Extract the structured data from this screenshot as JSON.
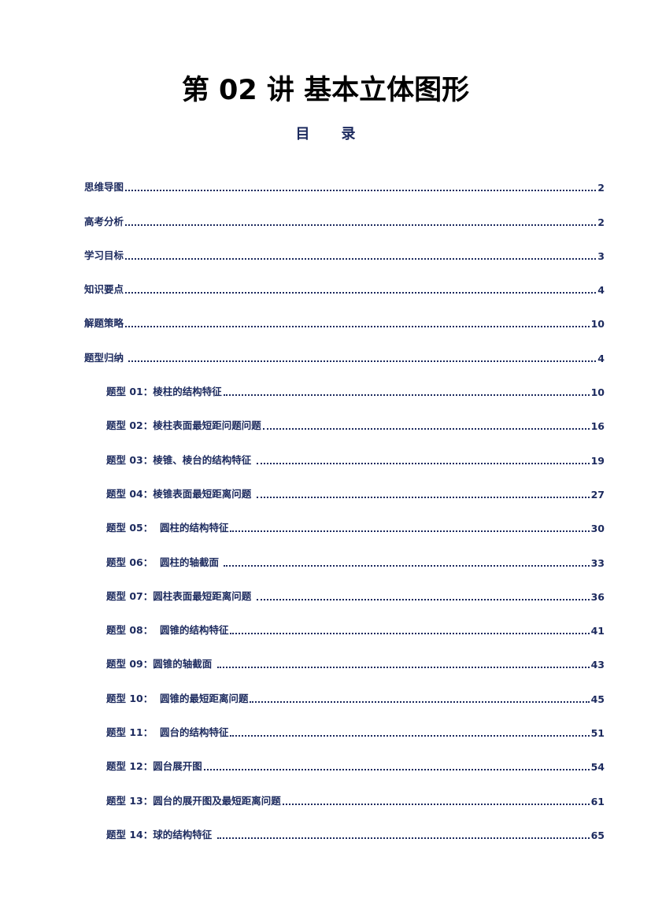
{
  "title": "第 02 讲  基本立体图形",
  "toc_heading": [
    "目",
    "录"
  ],
  "colors": {
    "text": "#1c2a5e",
    "title": "#000000"
  },
  "entries": [
    {
      "label": "思维导图",
      "page": "2",
      "level": 1
    },
    {
      "label": "高考分析",
      "page": "2",
      "level": 1
    },
    {
      "label": "学习目标",
      "page": "3",
      "level": 1
    },
    {
      "label": "知识要点",
      "page": "4",
      "level": 1
    },
    {
      "label": "解题策略",
      "page": "10",
      "level": 1
    },
    {
      "label": "题型归纳 ",
      "page": "4",
      "level": 1
    },
    {
      "label": "题型 01：棱柱的结构特征",
      "page": "10",
      "level": 2
    },
    {
      "label": "题型 02：棱柱表面最短距问题问题",
      "page": "16",
      "level": 2
    },
    {
      "label": "题型 03：棱锥、棱台的结构特征 ",
      "page": "19",
      "level": 2
    },
    {
      "label": "题型 04：棱锥表面最短距离问题 ",
      "page": "27",
      "level": 2
    },
    {
      "label": "题型 05：  圆柱的结构特征",
      "page": "30",
      "level": 2
    },
    {
      "label": "题型 06：  圆柱的轴截面 ",
      "page": "33",
      "level": 2
    },
    {
      "label": "题型 07：圆柱表面最短距离问题 ",
      "page": "36",
      "level": 2
    },
    {
      "label": "题型 08：  圆锥的结构特征",
      "page": "41",
      "level": 2
    },
    {
      "label": "题型 09：圆锥的轴截面 ",
      "page": "43",
      "level": 2
    },
    {
      "label": "题型 10：  圆锥的最短距离问题",
      "page": "45",
      "level": 2
    },
    {
      "label": "题型 11：  圆台的结构特征",
      "page": "51",
      "level": 2
    },
    {
      "label": "题型 12：圆台展开图",
      "page": "54",
      "level": 2
    },
    {
      "label": "题型 13：圆台的展开图及最短距离问题",
      "page": "61",
      "level": 2
    },
    {
      "label": "题型 14：球的结构特征 ",
      "page": "65",
      "level": 2
    }
  ]
}
